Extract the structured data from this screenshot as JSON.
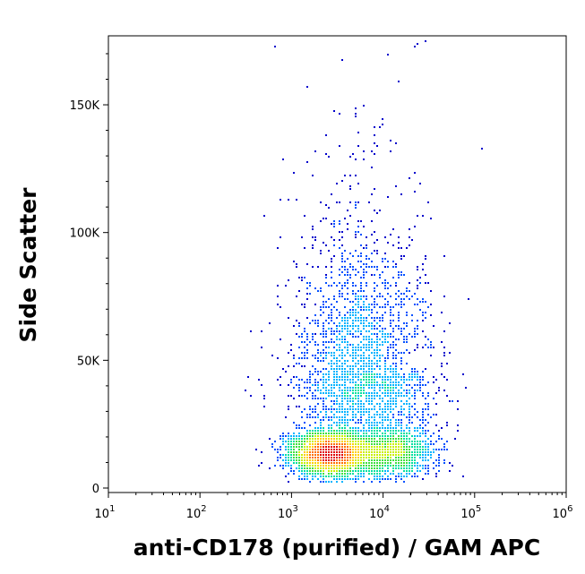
{
  "chart_data": {
    "type": "scatter",
    "title": "",
    "xlabel": "anti-CD178 (purified) / GAM APC",
    "ylabel": "Side Scatter",
    "x_scale": "log",
    "xlim": [
      10,
      1000000
    ],
    "ylim": [
      0,
      177000
    ],
    "x_ticks": [
      {
        "value": 10,
        "base": "10",
        "exp": "1"
      },
      {
        "value": 100,
        "base": "10",
        "exp": "2"
      },
      {
        "value": 1000,
        "base": "10",
        "exp": "3"
      },
      {
        "value": 10000,
        "base": "10",
        "exp": "4"
      },
      {
        "value": 100000,
        "base": "10",
        "exp": "5"
      },
      {
        "value": 1000000,
        "base": "10",
        "exp": "6"
      }
    ],
    "y_ticks": [
      {
        "value": 0,
        "label": "0"
      },
      {
        "value": 50000,
        "label": "50K"
      },
      {
        "value": 100000,
        "label": "100K"
      },
      {
        "value": 150000,
        "label": "150K"
      }
    ],
    "grid": false,
    "density_colors": [
      "#0000cc",
      "#0050ff",
      "#00b4ff",
      "#00e0a0",
      "#40e040",
      "#c8f000",
      "#ffd000",
      "#ff7000",
      "#e00000"
    ],
    "populations": [
      {
        "center_x": 2500,
        "center_y": 14000,
        "spread_log_x": 0.22,
        "spread_y": 4500,
        "count": 2600
      },
      {
        "center_x": 12000,
        "center_y": 14000,
        "spread_log_x": 0.25,
        "spread_y": 5000,
        "count": 1200
      },
      {
        "center_x": 6000,
        "center_y": 45000,
        "spread_log_x": 0.38,
        "spread_y": 22000,
        "count": 2200
      },
      {
        "center_x": 5000,
        "center_y": 95000,
        "spread_log_x": 0.35,
        "spread_y": 30000,
        "count": 220
      }
    ]
  }
}
